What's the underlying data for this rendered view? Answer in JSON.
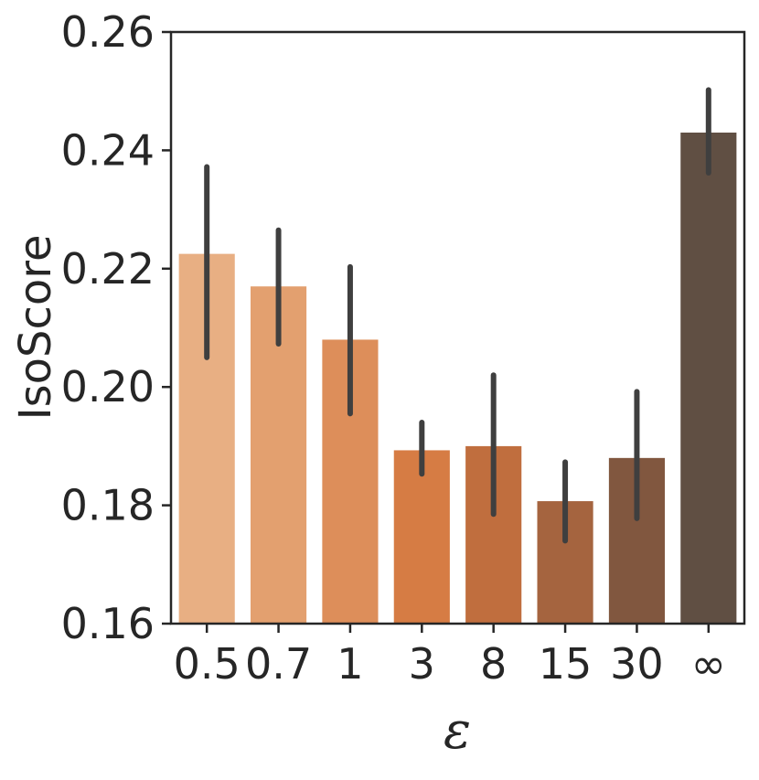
{
  "chart_data": {
    "type": "bar",
    "categories": [
      "0.5",
      "0.7",
      "1",
      "3",
      "8",
      "15",
      "30",
      "∞"
    ],
    "values": [
      0.2225,
      0.217,
      0.208,
      0.1893,
      0.19,
      0.1807,
      0.188,
      0.243
    ],
    "error_bars": [
      [
        0.205,
        0.2372
      ],
      [
        0.2073,
        0.2265
      ],
      [
        0.1955,
        0.2203
      ],
      [
        0.1853,
        0.194
      ],
      [
        0.1785,
        0.202
      ],
      [
        0.174,
        0.1873
      ],
      [
        0.1778,
        0.1992
      ],
      [
        0.2362,
        0.2502
      ]
    ],
    "colors": [
      "#E8AF83",
      "#E3A06F",
      "#DD8E5A",
      "#D67C44",
      "#C06E3E",
      "#A5643F",
      "#81573F",
      "#604F43"
    ],
    "xlabel": "ε",
    "ylabel": "IsoScore",
    "ylim": [
      0.16,
      0.26
    ],
    "yticks": [
      "0.16",
      "0.18",
      "0.20",
      "0.22",
      "0.24",
      "0.26"
    ],
    "grid": false
  }
}
